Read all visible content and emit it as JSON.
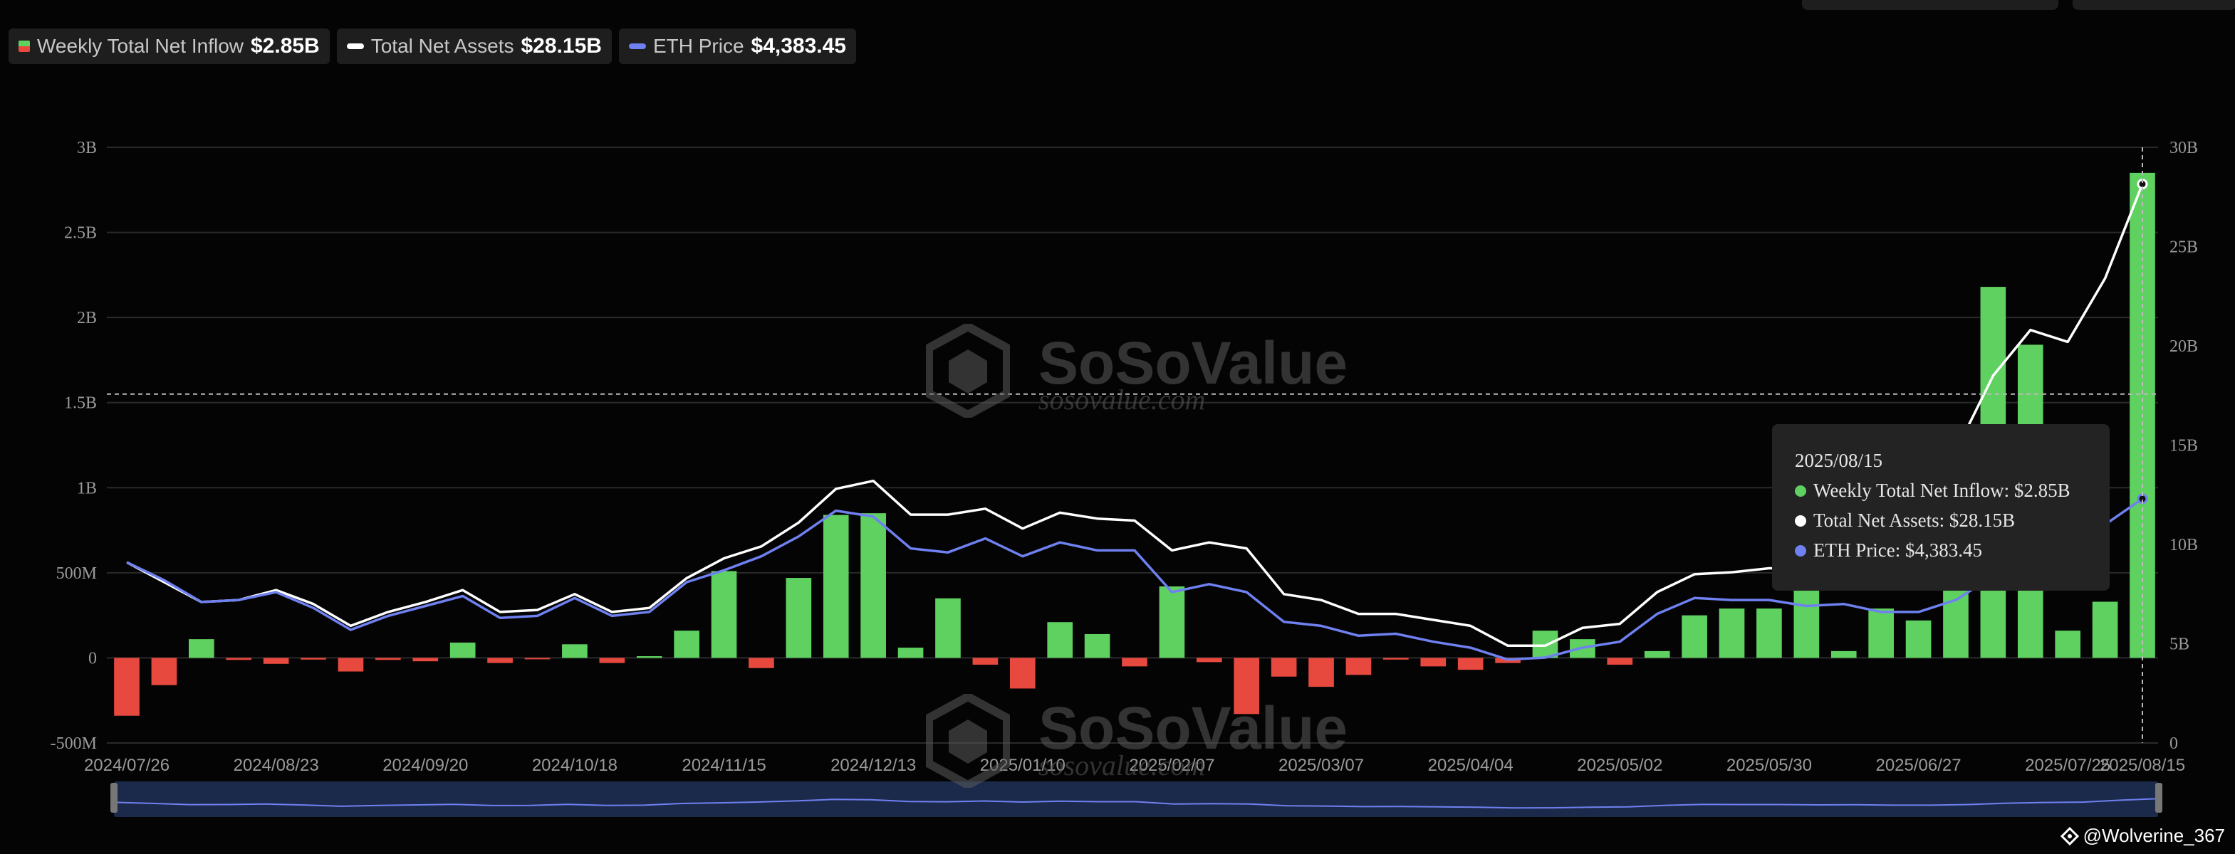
{
  "legend": {
    "inflow_label": "Weekly Total Net Inflow",
    "inflow_value": "$2.85B",
    "assets_label": "Total Net Assets",
    "assets_value": "$28.15B",
    "eth_label": "ETH Price",
    "eth_value": "$4,383.45"
  },
  "tooltip": {
    "date": "2025/08/15",
    "inflow": "Weekly Total Net Inflow: $2.85B",
    "assets": "Total Net Assets: $28.15B",
    "eth": "ETH Price: $4,383.45"
  },
  "watermark": {
    "brand": "SoSoValue",
    "url": "sosovalue.com"
  },
  "credit": "@Wolverine_367",
  "colors": {
    "positive": "#5fd160",
    "negative": "#e8493f",
    "assets_line": "#ffffff",
    "eth_line": "#6f80f0"
  },
  "chart_data": {
    "type": "bar",
    "x_tick_labels": [
      "2024/07/26",
      "2024/08/23",
      "2024/09/20",
      "2024/10/18",
      "2024/11/15",
      "2024/12/13",
      "2025/01/10",
      "2025/02/07",
      "2025/03/07",
      "2025/04/04",
      "2025/05/02",
      "2025/05/30",
      "2025/06/27",
      "2025/07/25",
      "2025/08/15"
    ],
    "y_left": {
      "ticks": [
        "-500M",
        "0",
        "500M",
        "1B",
        "1.5B",
        "2B",
        "2.5B",
        "3B"
      ],
      "range": [
        -500,
        3000
      ],
      "unit": "M"
    },
    "y_right": {
      "ticks": [
        "0",
        "5B",
        "10B",
        "15B",
        "20B",
        "25B",
        "30B"
      ],
      "range": [
        0,
        30
      ],
      "unit": "B"
    },
    "series": [
      {
        "name": "Weekly Total Net Inflow",
        "type": "bar",
        "values": [
          -340,
          -160,
          110,
          -12,
          -35,
          -10,
          -80,
          -12,
          -20,
          90,
          -30,
          -5,
          80,
          -30,
          10,
          160,
          510,
          -60,
          470,
          840,
          850,
          60,
          350,
          -40,
          -180,
          210,
          140,
          -50,
          420,
          -25,
          -330,
          -110,
          -170,
          -100,
          -10,
          -50,
          -70,
          -30,
          160,
          110,
          -40,
          40,
          250,
          290,
          290,
          530,
          40,
          290,
          220,
          450,
          2180,
          1840,
          160,
          330,
          2850
        ]
      },
      {
        "name": "Total Net Assets",
        "type": "line",
        "values": [
          9.1,
          8.1,
          7.1,
          7.2,
          7.7,
          7.0,
          5.9,
          6.6,
          7.1,
          7.7,
          6.6,
          6.7,
          7.5,
          6.6,
          6.8,
          8.3,
          9.3,
          9.9,
          11.1,
          12.8,
          13.2,
          11.5,
          11.5,
          11.8,
          10.8,
          11.6,
          11.3,
          11.2,
          9.7,
          10.1,
          9.8,
          7.5,
          7.2,
          6.5,
          6.5,
          6.2,
          5.9,
          4.9,
          4.9,
          5.8,
          6.0,
          7.6,
          8.5,
          8.6,
          8.8,
          8.8,
          9.4,
          10.2,
          10.5,
          14.7,
          18.5,
          20.8,
          20.2,
          23.4,
          28.15
        ]
      },
      {
        "name": "ETH Price",
        "type": "line",
        "values": [
          9.1,
          8.2,
          7.1,
          7.2,
          7.6,
          6.8,
          5.7,
          6.4,
          6.9,
          7.4,
          6.3,
          6.4,
          7.3,
          6.4,
          6.6,
          8.1,
          8.7,
          9.4,
          10.4,
          11.7,
          11.4,
          9.8,
          9.6,
          10.3,
          9.4,
          10.1,
          9.7,
          9.7,
          7.6,
          8.0,
          7.6,
          6.1,
          5.9,
          5.4,
          5.5,
          5.1,
          4.8,
          4.2,
          4.3,
          4.8,
          5.1,
          6.5,
          7.3,
          7.2,
          7.2,
          6.9,
          7.0,
          6.6,
          6.6,
          7.2,
          8.4,
          9.0,
          9.3,
          11.0,
          12.3
        ]
      }
    ],
    "highlight": {
      "date": "2025/08/15",
      "left_value_ref": 1550
    }
  }
}
